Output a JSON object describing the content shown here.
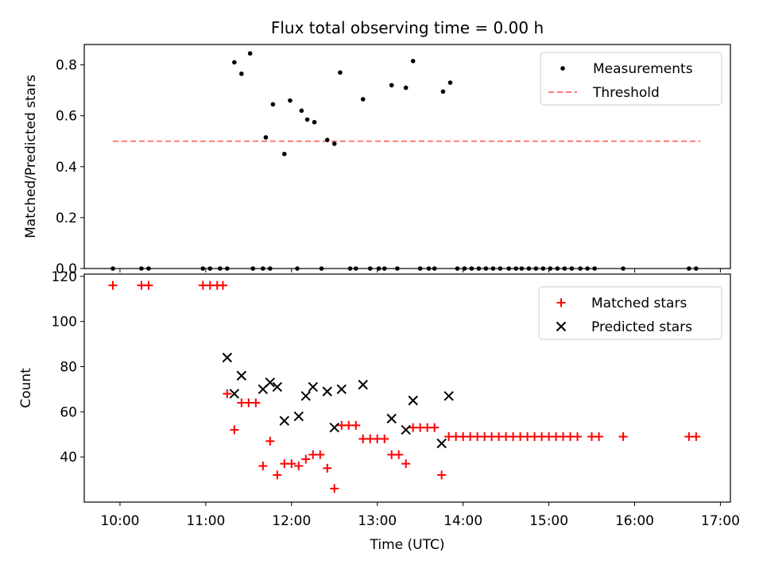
{
  "chart_data": [
    {
      "type": "scatter",
      "title": "Flux total observing time = 0.00 h",
      "xlabel": "",
      "ylabel": "Matched/Predicted stars",
      "xlim": [
        "09:35",
        "17:07"
      ],
      "ylim": [
        0,
        0.88
      ],
      "y_ticks": [
        "0.0",
        "0.2",
        "0.4",
        "0.6",
        "0.8"
      ],
      "grid": false,
      "legend_position": "top-right",
      "series": [
        {
          "name": "Measurements",
          "marker": "dot",
          "color": "#000000",
          "points": [
            [
              "09:55",
              0.0
            ],
            [
              "10:15",
              0.0
            ],
            [
              "10:20",
              0.0
            ],
            [
              "10:58",
              0.0
            ],
            [
              "11:03",
              0.0
            ],
            [
              "11:10",
              0.0
            ],
            [
              "11:15",
              0.0
            ],
            [
              "11:20",
              0.81
            ],
            [
              "11:25",
              0.765
            ],
            [
              "11:31",
              0.845
            ],
            [
              "11:33",
              0.0
            ],
            [
              "11:40",
              0.0
            ],
            [
              "11:45",
              0.0
            ],
            [
              "11:42",
              0.515
            ],
            [
              "11:47",
              0.645
            ],
            [
              "11:55",
              0.45
            ],
            [
              "11:59",
              0.66
            ],
            [
              "12:04",
              0.0
            ],
            [
              "12:07",
              0.62
            ],
            [
              "12:11",
              0.585
            ],
            [
              "12:16",
              0.575
            ],
            [
              "12:21",
              0.0
            ],
            [
              "12:25",
              0.505
            ],
            [
              "12:30",
              0.49
            ],
            [
              "12:34",
              0.77
            ],
            [
              "12:41",
              0.0
            ],
            [
              "12:45",
              0.0
            ],
            [
              "12:50",
              0.665
            ],
            [
              "12:55",
              0.0
            ],
            [
              "13:01",
              0.0
            ],
            [
              "13:05",
              0.0
            ],
            [
              "13:10",
              0.72
            ],
            [
              "13:14",
              0.0
            ],
            [
              "13:20",
              0.71
            ],
            [
              "13:25",
              0.815
            ],
            [
              "13:30",
              0.0
            ],
            [
              "13:36",
              0.0
            ],
            [
              "13:40",
              0.0
            ],
            [
              "13:46",
              0.695
            ],
            [
              "13:51",
              0.73
            ],
            [
              "13:56",
              0.0
            ],
            [
              "14:01",
              0.0
            ],
            [
              "14:06",
              0.0
            ],
            [
              "14:11",
              0.0
            ],
            [
              "14:16",
              0.0
            ],
            [
              "14:21",
              0.0
            ],
            [
              "14:26",
              0.0
            ],
            [
              "14:32",
              0.0
            ],
            [
              "14:37",
              0.0
            ],
            [
              "14:41",
              0.0
            ],
            [
              "14:46",
              0.0
            ],
            [
              "14:51",
              0.0
            ],
            [
              "14:56",
              0.0
            ],
            [
              "15:01",
              0.0
            ],
            [
              "15:06",
              0.0
            ],
            [
              "15:11",
              0.0
            ],
            [
              "15:16",
              0.0
            ],
            [
              "15:22",
              0.0
            ],
            [
              "15:27",
              0.0
            ],
            [
              "15:32",
              0.0
            ],
            [
              "15:52",
              0.0
            ],
            [
              "16:38",
              0.0
            ],
            [
              "16:43",
              0.0
            ]
          ]
        },
        {
          "name": "Threshold",
          "style": "dashed",
          "color": "#ff7777",
          "x": [
            "09:55",
            "16:46"
          ],
          "y": [
            0.5,
            0.5
          ]
        }
      ]
    },
    {
      "type": "scatter",
      "title": "",
      "xlabel": "Time (UTC)",
      "ylabel": "Count",
      "xlim": [
        "09:35",
        "17:07"
      ],
      "ylim": [
        20,
        121
      ],
      "y_ticks": [
        "40",
        "60",
        "80",
        "100",
        "120"
      ],
      "x_ticks": [
        "10:00",
        "11:00",
        "12:00",
        "13:00",
        "14:00",
        "15:00",
        "16:00",
        "17:00"
      ],
      "grid": false,
      "legend_position": "top-right",
      "series": [
        {
          "name": "Matched stars",
          "marker": "plus",
          "color": "#ff0000",
          "points": [
            [
              "09:55",
              116
            ],
            [
              "10:15",
              116
            ],
            [
              "10:20",
              116
            ],
            [
              "10:58",
              116
            ],
            [
              "11:03",
              116
            ],
            [
              "11:08",
              116
            ],
            [
              "11:12",
              116
            ],
            [
              "11:15",
              68
            ],
            [
              "11:20",
              52
            ],
            [
              "11:25",
              64
            ],
            [
              "11:30",
              64
            ],
            [
              "11:35",
              64
            ],
            [
              "11:40",
              36
            ],
            [
              "11:45",
              47
            ],
            [
              "11:50",
              32
            ],
            [
              "11:55",
              37
            ],
            [
              "12:00",
              37
            ],
            [
              "12:05",
              36
            ],
            [
              "12:10",
              39
            ],
            [
              "12:15",
              41
            ],
            [
              "12:20",
              41
            ],
            [
              "12:25",
              35
            ],
            [
              "12:30",
              26
            ],
            [
              "12:35",
              54
            ],
            [
              "12:40",
              54
            ],
            [
              "12:45",
              54
            ],
            [
              "12:50",
              48
            ],
            [
              "12:55",
              48
            ],
            [
              "13:00",
              48
            ],
            [
              "13:05",
              48
            ],
            [
              "13:10",
              41
            ],
            [
              "13:15",
              41
            ],
            [
              "13:20",
              37
            ],
            [
              "13:25",
              53
            ],
            [
              "13:30",
              53
            ],
            [
              "13:35",
              53
            ],
            [
              "13:40",
              53
            ],
            [
              "13:45",
              32
            ],
            [
              "13:50",
              49
            ],
            [
              "13:55",
              49
            ],
            [
              "14:00",
              49
            ],
            [
              "14:05",
              49
            ],
            [
              "14:10",
              49
            ],
            [
              "14:15",
              49
            ],
            [
              "14:20",
              49
            ],
            [
              "14:25",
              49
            ],
            [
              "14:30",
              49
            ],
            [
              "14:35",
              49
            ],
            [
              "14:40",
              49
            ],
            [
              "14:45",
              49
            ],
            [
              "14:50",
              49
            ],
            [
              "14:55",
              49
            ],
            [
              "15:00",
              49
            ],
            [
              "15:05",
              49
            ],
            [
              "15:10",
              49
            ],
            [
              "15:15",
              49
            ],
            [
              "15:20",
              49
            ],
            [
              "15:30",
              49
            ],
            [
              "15:35",
              49
            ],
            [
              "15:52",
              49
            ],
            [
              "16:38",
              49
            ],
            [
              "16:43",
              49
            ]
          ]
        },
        {
          "name": "Predicted stars",
          "marker": "x",
          "color": "#000000",
          "points": [
            [
              "11:15",
              84
            ],
            [
              "11:20",
              68
            ],
            [
              "11:25",
              76
            ],
            [
              "11:40",
              70
            ],
            [
              "11:45",
              73
            ],
            [
              "11:50",
              71
            ],
            [
              "11:55",
              56
            ],
            [
              "12:05",
              58
            ],
            [
              "12:10",
              67
            ],
            [
              "12:15",
              71
            ],
            [
              "12:25",
              69
            ],
            [
              "12:30",
              53
            ],
            [
              "12:35",
              70
            ],
            [
              "12:50",
              72
            ],
            [
              "13:10",
              57
            ],
            [
              "13:20",
              52
            ],
            [
              "13:25",
              65
            ],
            [
              "13:45",
              46
            ],
            [
              "13:50",
              67
            ]
          ]
        }
      ]
    }
  ]
}
